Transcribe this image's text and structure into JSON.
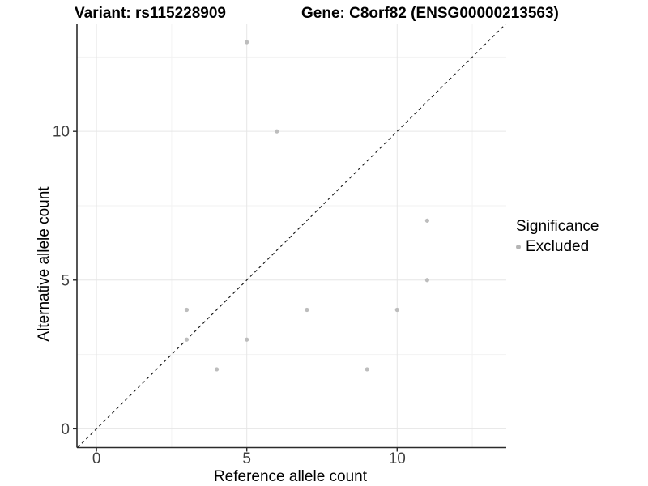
{
  "chart_data": {
    "type": "scatter",
    "title_left": "Variant: rs115228909",
    "title_right": "Gene: C8orf82 (ENSG00000213563)",
    "xlabel": "Reference allele count",
    "ylabel": "Alternative allele count",
    "x_ticks": [
      0,
      5,
      10
    ],
    "y_ticks": [
      0,
      5,
      10
    ],
    "x_minor_ticks": [
      2.5,
      7.5,
      12.5
    ],
    "y_minor_ticks": [
      2.5,
      7.5,
      12.5
    ],
    "xlim": [
      -0.65,
      13.63
    ],
    "ylim": [
      -0.63,
      13.6
    ],
    "grid": true,
    "identity_line": {
      "style": "dashed",
      "slope": 1,
      "intercept": 0,
      "color": "#1a1a1a"
    },
    "series": [
      {
        "name": "Excluded",
        "color": "#bdbdbd",
        "points": [
          {
            "x": 3,
            "y": 3
          },
          {
            "x": 3,
            "y": 4
          },
          {
            "x": 4,
            "y": 2
          },
          {
            "x": 5,
            "y": 3
          },
          {
            "x": 5,
            "y": 13
          },
          {
            "x": 6,
            "y": 10
          },
          {
            "x": 7,
            "y": 4
          },
          {
            "x": 9,
            "y": 2
          },
          {
            "x": 10,
            "y": 4
          },
          {
            "x": 11,
            "y": 5
          },
          {
            "x": 11,
            "y": 7
          }
        ]
      }
    ],
    "legend": {
      "title": "Significance",
      "position": "right",
      "items": [
        {
          "label": "Excluded",
          "color": "#b5b5b5"
        }
      ]
    }
  },
  "colors": {
    "background": "#ffffff",
    "grid_major": "#e6e6e6",
    "grid_minor": "#f2f2f2",
    "axis_line": "#2b2b2b",
    "tick_label": "#404040",
    "point": "#bdbdbd",
    "identity_line": "#1a1a1a"
  }
}
